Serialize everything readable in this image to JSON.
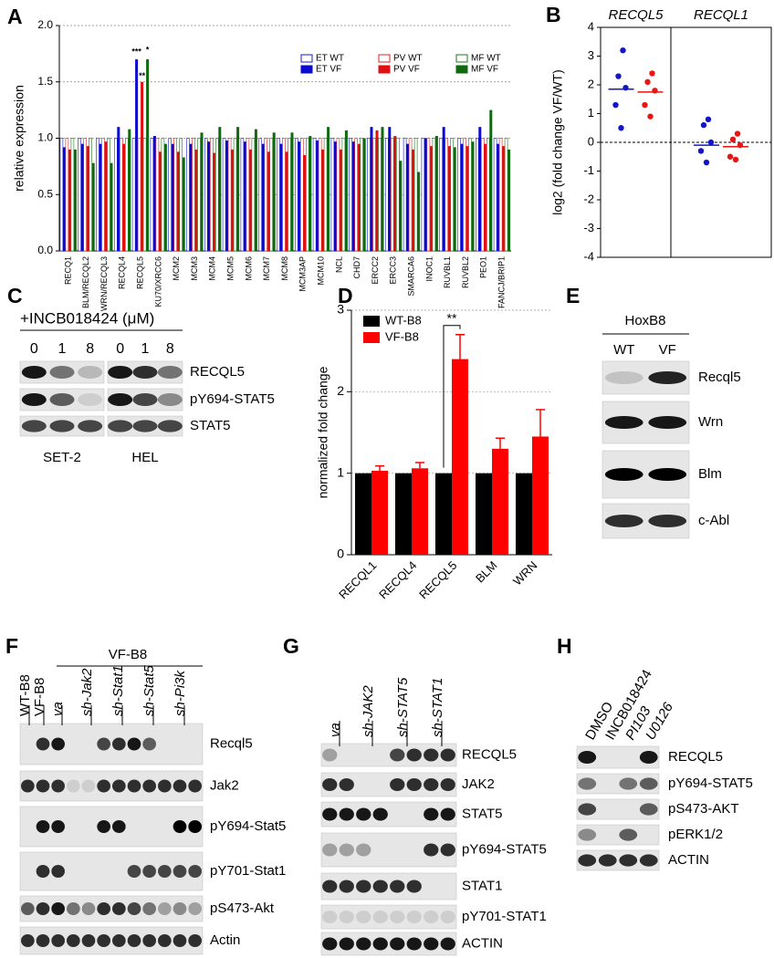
{
  "chart_data": [
    {
      "type": "bar",
      "panel": "A",
      "ylabel": "relative expression",
      "categories": [
        "RECQ1",
        "BLM/RECQL2",
        "WRN/RECQL3",
        "RECQL4",
        "RECQL5",
        "KU70/XRCC6",
        "MCM2",
        "MCM3",
        "MCM4",
        "MCM5",
        "MCM6",
        "MCM7",
        "MCM8",
        "MCM3AP",
        "MCM10",
        "NCL",
        "CHD7",
        "ERCC2",
        "ERCC3",
        "SMARCA6",
        "INOC1",
        "RUVBL1",
        "RUVBL2",
        "PEO1",
        "FANCJ/BRIP1"
      ],
      "ylim": [
        0,
        2
      ],
      "yticks": [
        {
          "value": 0,
          "label": "0.0"
        },
        {
          "value": 0.5,
          "label": "0.5"
        },
        {
          "value": 1,
          "label": "1.0"
        },
        {
          "value": 1.5,
          "label": "1.5"
        },
        {
          "value": 2,
          "label": "2.0"
        }
      ],
      "grid": true,
      "legend": "upper right",
      "series": [
        {
          "name": "ET WT",
          "color": "#1a1ad0",
          "filled": false,
          "values": [
            1,
            1,
            1,
            1,
            1,
            1,
            1,
            1,
            1,
            1,
            1,
            1,
            1,
            1,
            1,
            1,
            1,
            1,
            1,
            1,
            1,
            1,
            1,
            1,
            1
          ]
        },
        {
          "name": "ET VF",
          "color": "#0a0ad0",
          "filled": true,
          "values": [
            0.92,
            0.95,
            0.95,
            1.1,
            1.7,
            1.02,
            0.95,
            0.95,
            0.97,
            0.98,
            0.97,
            0.95,
            0.95,
            0.97,
            0.98,
            0.97,
            0.97,
            1.1,
            1.1,
            0.95,
            1.0,
            1.1,
            0.95,
            1.1,
            0.95
          ]
        },
        {
          "name": "PV WT",
          "color": "#e02020",
          "filled": false,
          "values": [
            1,
            1,
            1,
            1,
            1,
            1,
            1,
            1,
            1,
            1,
            1,
            1,
            1,
            1,
            1,
            1,
            1,
            1,
            1,
            1,
            1,
            1,
            1,
            1,
            1
          ]
        },
        {
          "name": "PV VF",
          "color": "#e01010",
          "filled": true,
          "values": [
            0.9,
            0.93,
            0.97,
            0.95,
            1.5,
            0.88,
            0.88,
            0.9,
            0.87,
            0.9,
            0.9,
            0.88,
            0.88,
            0.85,
            0.9,
            0.9,
            0.95,
            1.07,
            1.02,
            0.9,
            0.93,
            0.93,
            0.93,
            0.95,
            0.93
          ]
        },
        {
          "name": "MF WT",
          "color": "#1a7a1a",
          "filled": false,
          "values": [
            1,
            1,
            1,
            1,
            1,
            1,
            1,
            1,
            1,
            1,
            1,
            1,
            1,
            1,
            1,
            1,
            1,
            1,
            1,
            1,
            1,
            1,
            1,
            1,
            1
          ]
        },
        {
          "name": "MF VF",
          "color": "#0f6a0f",
          "filled": true,
          "values": [
            0.9,
            0.78,
            0.78,
            1.08,
            1.7,
            0.95,
            0.83,
            1.05,
            1.1,
            1.1,
            1.08,
            1.05,
            1.05,
            1.02,
            1.1,
            1.07,
            1.0,
            1.1,
            0.8,
            0.7,
            1.02,
            0.92,
            0.97,
            1.25,
            0.9
          ]
        }
      ],
      "annotations": [
        {
          "text": "***",
          "series": "ET VF",
          "category": "RECQL5"
        },
        {
          "text": "**",
          "series": "PV VF",
          "category": "RECQL5"
        },
        {
          "text": "*",
          "series": "MF VF",
          "category": "RECQL5"
        }
      ]
    },
    {
      "type": "dot",
      "panel": "B",
      "ylabel": "log2 (fold change VF/WT)",
      "ylim": [
        -4,
        4
      ],
      "yticks": [
        -4,
        -3,
        -2,
        -1,
        0,
        1,
        2,
        3,
        4
      ],
      "zero_line": true,
      "groups": [
        {
          "name": "RECQL5",
          "series": [
            {
              "color": "#1515c8",
              "values": [
                3.2,
                2.3,
                1.9,
                1.3,
                0.5
              ],
              "median": 1.85
            },
            {
              "color": "#e81515",
              "values": [
                2.4,
                2.1,
                1.8,
                1.3,
                0.9
              ],
              "median": 1.75
            }
          ]
        },
        {
          "name": "RECQL1",
          "series": [
            {
              "color": "#1515c8",
              "values": [
                0.8,
                0.6,
                0.0,
                -0.3,
                -0.7
              ],
              "median": -0.1
            },
            {
              "color": "#e81515",
              "values": [
                0.3,
                0.1,
                -0.1,
                -0.5,
                -0.6
              ],
              "median": -0.15
            }
          ]
        }
      ]
    },
    {
      "type": "bar",
      "panel": "D",
      "ylabel": "normalized fold change",
      "categories": [
        "RECQL1",
        "RECQL4",
        "RECQL5",
        "BLM",
        "WRN"
      ],
      "ylim": [
        0,
        3
      ],
      "yticks": [
        0,
        1,
        2,
        3
      ],
      "grid": true,
      "legend": "upper left",
      "series": [
        {
          "name": "WT-B8",
          "color": "#000000",
          "values": [
            1,
            1,
            1,
            1,
            1
          ]
        },
        {
          "name": "VF-B8",
          "color": "#ff0000",
          "values": [
            1.03,
            1.06,
            2.4,
            1.3,
            1.45
          ],
          "errors": [
            0.06,
            0.07,
            0.3,
            0.13,
            0.33
          ]
        }
      ],
      "annotations": [
        {
          "text": "**",
          "category": "RECQL5"
        }
      ]
    }
  ],
  "blots": [
    {
      "panel": "C",
      "treatment": "+INCB018424 (μM)",
      "lanes": [
        "0",
        "1",
        "8",
        "0",
        "1",
        "8"
      ],
      "cell_lines": [
        "SET-2",
        "HEL"
      ],
      "rows": [
        "RECQL5",
        "pY694-STAT5",
        "STAT5"
      ]
    },
    {
      "panel": "E",
      "header": "HoxB8",
      "lanes": [
        "WT",
        "VF"
      ],
      "rows": [
        "Recql5",
        "Wrn",
        "Blm",
        "c-Abl"
      ]
    },
    {
      "panel": "F",
      "header": "VF-B8",
      "lanes": [
        "WT-B8",
        "VF-B8",
        "va",
        "sh-Jak2",
        "sh-Stat1",
        "sh-Stat5",
        "sh-Pi3k"
      ],
      "rows": [
        "Recql5",
        "Jak2",
        "pY694-Stat5",
        "pY701-Stat1",
        "pS473-Akt",
        "Actin"
      ]
    },
    {
      "panel": "G",
      "lanes": [
        "va",
        "sh-JAK2",
        "sh-STAT5",
        "sh-STAT1"
      ],
      "rows": [
        "RECQL5",
        "JAK2",
        "STAT5",
        "pY694-STAT5",
        "STAT1",
        "pY701-STAT1",
        "ACTIN"
      ]
    },
    {
      "panel": "H",
      "lanes": [
        "DMSO",
        "INCB018424",
        "PI103",
        "U0126"
      ],
      "rows": [
        "RECQL5",
        "pY694-STAT5",
        "pS473-AKT",
        "pERK1/2",
        "ACTIN"
      ]
    }
  ]
}
